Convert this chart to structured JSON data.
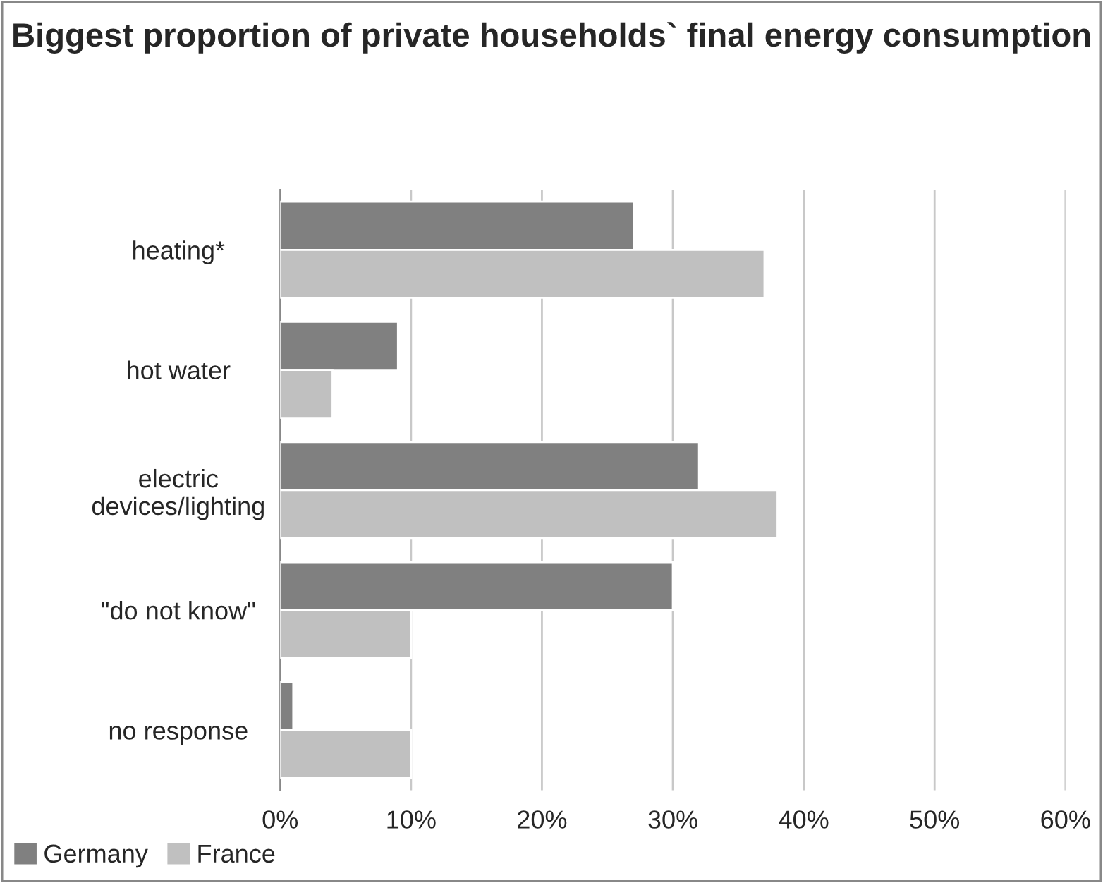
{
  "chart_data": {
    "type": "bar",
    "orientation": "horizontal",
    "title": "Biggest proportion of private households` final energy consumption",
    "categories": [
      "heating*",
      "hot water",
      "electric\ndevices/lighting",
      "\"do not know\"",
      "no response"
    ],
    "series": [
      {
        "name": "Germany",
        "color": "#808080",
        "values": [
          27,
          9,
          32,
          30,
          1
        ]
      },
      {
        "name": "France",
        "color": "#c0c0c0",
        "values": [
          37,
          4,
          38,
          10,
          10
        ]
      }
    ],
    "xlim": [
      0,
      60
    ],
    "xticks": [
      {
        "value": 0,
        "label": "0%"
      },
      {
        "value": 10,
        "label": "10%"
      },
      {
        "value": 20,
        "label": "20%"
      },
      {
        "value": 30,
        "label": "30%"
      },
      {
        "value": 40,
        "label": "40%"
      },
      {
        "value": 50,
        "label": "50%"
      },
      {
        "value": 60,
        "label": "60%"
      }
    ],
    "grid": "x",
    "legend": "bottom left"
  }
}
